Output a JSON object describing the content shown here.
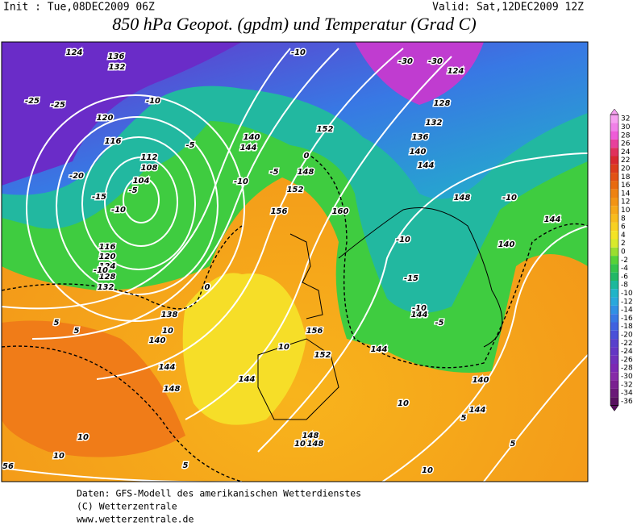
{
  "header": {
    "init": "Init : Tue,08DEC2009 06Z",
    "valid": "Valid: Sat,12DEC2009 12Z",
    "title": "850 hPa Geopot. (gpdm) und Temperatur (Grad C)"
  },
  "map_labels": [
    "-25",
    "-25",
    "124",
    "136",
    "132",
    "120",
    "116",
    "112",
    "108",
    "104",
    "-5",
    "-15",
    "-10",
    "-20",
    "116",
    "120",
    "124",
    "128",
    "132",
    "-10",
    "-10",
    "-5",
    "144",
    "140",
    "148",
    "152",
    "156",
    "160",
    "152",
    "-10",
    "-30",
    "-30",
    "124",
    "128",
    "132",
    "136",
    "140",
    "144",
    "148",
    "-10",
    "144",
    "140",
    "-10",
    "-15",
    "-10",
    "144",
    "-5",
    "156",
    "152",
    "144",
    "140",
    "144",
    "5",
    "5",
    "10",
    "138",
    "140",
    "144",
    "148",
    "144",
    "10",
    "10",
    "5",
    "5",
    "10",
    "10",
    "5",
    "10",
    "56",
    "148",
    "148",
    "10",
    "0",
    "0",
    "-5",
    "-10"
  ],
  "colorbar": {
    "ticks": [
      32,
      30,
      28,
      26,
      24,
      22,
      20,
      18,
      16,
      14,
      12,
      10,
      8,
      6,
      4,
      2,
      0,
      -2,
      -4,
      -6,
      -8,
      -10,
      -12,
      -14,
      -16,
      -18,
      -20,
      -22,
      -24,
      -26,
      -28,
      -30,
      -32,
      -34,
      -36
    ],
    "colors": [
      "#f6a0f0",
      "#f080e8",
      "#ee5cd8",
      "#e8409c",
      "#e0305c",
      "#d82830",
      "#dc3c1c",
      "#e25214",
      "#e86a10",
      "#ee8210",
      "#f29414",
      "#f6a818",
      "#f8bc1c",
      "#f8d020",
      "#f4e424",
      "#d8ea2c",
      "#9ade30",
      "#56d238",
      "#34c44c",
      "#22b866",
      "#1cb89c",
      "#20b4c8",
      "#28a8dc",
      "#3090e4",
      "#3878e4",
      "#4062e0",
      "#4a50d8",
      "#5840cc",
      "#6436c4",
      "#7030bc",
      "#7c28b4",
      "#862aa8",
      "#7a2090",
      "#6a1878",
      "#581060"
    ]
  },
  "footer": [
    "Daten: GFS-Modell des amerikanischen Wetterdienstes",
    "(C) Wetterzentrale",
    "www.wetterzentrale.de"
  ]
}
